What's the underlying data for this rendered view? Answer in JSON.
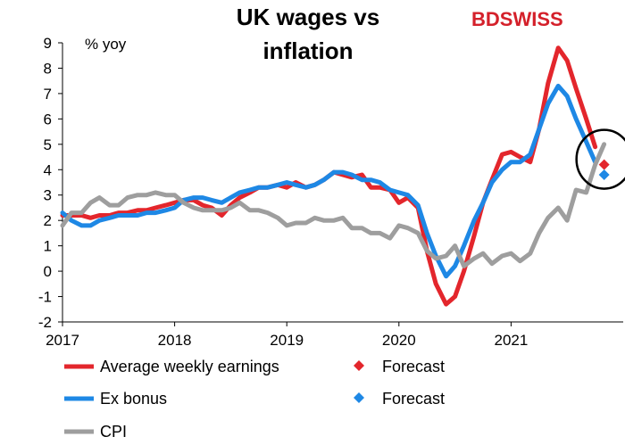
{
  "brand": {
    "text": "BDSWISS",
    "color": "#d4202a"
  },
  "chart_data": {
    "type": "line",
    "title": "UK wages vs inflation",
    "title_lines": [
      "UK wages vs",
      "inflation"
    ],
    "ylabel": "% yoy",
    "ylim": [
      -2,
      9
    ],
    "yticks": [
      -2,
      -1,
      0,
      1,
      2,
      3,
      4,
      5,
      6,
      7,
      8,
      9
    ],
    "xlim": [
      2017.0,
      2022.0
    ],
    "xticks": [
      2017,
      2018,
      2019,
      2020,
      2021
    ],
    "grid": false,
    "legend_position": "bottom",
    "series": [
      {
        "name": "Average weekly earnings",
        "color": "#e3262c",
        "points": [
          [
            2017.0,
            2.2
          ],
          [
            2017.08,
            2.2
          ],
          [
            2017.17,
            2.2
          ],
          [
            2017.25,
            2.1
          ],
          [
            2017.33,
            2.2
          ],
          [
            2017.42,
            2.2
          ],
          [
            2017.5,
            2.3
          ],
          [
            2017.58,
            2.3
          ],
          [
            2017.67,
            2.4
          ],
          [
            2017.75,
            2.4
          ],
          [
            2017.83,
            2.5
          ],
          [
            2017.92,
            2.6
          ],
          [
            2018.0,
            2.7
          ],
          [
            2018.08,
            2.8
          ],
          [
            2018.17,
            2.8
          ],
          [
            2018.25,
            2.6
          ],
          [
            2018.33,
            2.5
          ],
          [
            2018.42,
            2.2
          ],
          [
            2018.5,
            2.6
          ],
          [
            2018.58,
            2.9
          ],
          [
            2018.67,
            3.1
          ],
          [
            2018.75,
            3.3
          ],
          [
            2018.83,
            3.3
          ],
          [
            2018.92,
            3.4
          ],
          [
            2019.0,
            3.3
          ],
          [
            2019.08,
            3.5
          ],
          [
            2019.17,
            3.3
          ],
          [
            2019.25,
            3.4
          ],
          [
            2019.33,
            3.6
          ],
          [
            2019.42,
            3.9
          ],
          [
            2019.5,
            3.8
          ],
          [
            2019.58,
            3.7
          ],
          [
            2019.67,
            3.8
          ],
          [
            2019.75,
            3.3
          ],
          [
            2019.83,
            3.3
          ],
          [
            2019.92,
            3.2
          ],
          [
            2020.0,
            2.7
          ],
          [
            2020.08,
            2.9
          ],
          [
            2020.17,
            2.5
          ],
          [
            2020.25,
            0.8
          ],
          [
            2020.33,
            -0.5
          ],
          [
            2020.42,
            -1.3
          ],
          [
            2020.5,
            -1.0
          ],
          [
            2020.58,
            0.0
          ],
          [
            2020.67,
            1.4
          ],
          [
            2020.75,
            2.7
          ],
          [
            2020.83,
            3.6
          ],
          [
            2020.92,
            4.6
          ],
          [
            2021.0,
            4.7
          ],
          [
            2021.08,
            4.5
          ],
          [
            2021.17,
            4.3
          ],
          [
            2021.25,
            5.6
          ],
          [
            2021.33,
            7.4
          ],
          [
            2021.42,
            8.8
          ],
          [
            2021.5,
            8.3
          ],
          [
            2021.58,
            7.2
          ],
          [
            2021.67,
            6.0
          ],
          [
            2021.75,
            4.9
          ]
        ]
      },
      {
        "name": "Ex bonus",
        "color": "#1e88e5",
        "points": [
          [
            2017.0,
            2.3
          ],
          [
            2017.08,
            2.0
          ],
          [
            2017.17,
            1.8
          ],
          [
            2017.25,
            1.8
          ],
          [
            2017.33,
            2.0
          ],
          [
            2017.42,
            2.1
          ],
          [
            2017.5,
            2.2
          ],
          [
            2017.58,
            2.2
          ],
          [
            2017.67,
            2.2
          ],
          [
            2017.75,
            2.3
          ],
          [
            2017.83,
            2.3
          ],
          [
            2017.92,
            2.4
          ],
          [
            2018.0,
            2.5
          ],
          [
            2018.08,
            2.8
          ],
          [
            2018.17,
            2.9
          ],
          [
            2018.25,
            2.9
          ],
          [
            2018.33,
            2.8
          ],
          [
            2018.42,
            2.7
          ],
          [
            2018.5,
            2.9
          ],
          [
            2018.58,
            3.1
          ],
          [
            2018.67,
            3.2
          ],
          [
            2018.75,
            3.3
          ],
          [
            2018.83,
            3.3
          ],
          [
            2018.92,
            3.4
          ],
          [
            2019.0,
            3.5
          ],
          [
            2019.08,
            3.4
          ],
          [
            2019.17,
            3.3
          ],
          [
            2019.25,
            3.4
          ],
          [
            2019.33,
            3.6
          ],
          [
            2019.42,
            3.9
          ],
          [
            2019.5,
            3.9
          ],
          [
            2019.58,
            3.8
          ],
          [
            2019.67,
            3.6
          ],
          [
            2019.75,
            3.6
          ],
          [
            2019.83,
            3.5
          ],
          [
            2019.92,
            3.2
          ],
          [
            2020.0,
            3.1
          ],
          [
            2020.08,
            3.0
          ],
          [
            2020.17,
            2.6
          ],
          [
            2020.25,
            1.5
          ],
          [
            2020.33,
            0.6
          ],
          [
            2020.42,
            -0.2
          ],
          [
            2020.5,
            0.2
          ],
          [
            2020.58,
            1.0
          ],
          [
            2020.67,
            2.0
          ],
          [
            2020.75,
            2.7
          ],
          [
            2020.83,
            3.5
          ],
          [
            2020.92,
            4.0
          ],
          [
            2021.0,
            4.3
          ],
          [
            2021.08,
            4.3
          ],
          [
            2021.17,
            4.6
          ],
          [
            2021.25,
            5.6
          ],
          [
            2021.33,
            6.6
          ],
          [
            2021.42,
            7.3
          ],
          [
            2021.5,
            6.9
          ],
          [
            2021.58,
            6.0
          ],
          [
            2021.67,
            5.1
          ],
          [
            2021.75,
            4.3
          ]
        ]
      },
      {
        "name": "CPI",
        "color": "#9e9e9e",
        "points": [
          [
            2017.0,
            1.8
          ],
          [
            2017.08,
            2.3
          ],
          [
            2017.17,
            2.3
          ],
          [
            2017.25,
            2.7
          ],
          [
            2017.33,
            2.9
          ],
          [
            2017.42,
            2.6
          ],
          [
            2017.5,
            2.6
          ],
          [
            2017.58,
            2.9
          ],
          [
            2017.67,
            3.0
          ],
          [
            2017.75,
            3.0
          ],
          [
            2017.83,
            3.1
          ],
          [
            2017.92,
            3.0
          ],
          [
            2018.0,
            3.0
          ],
          [
            2018.08,
            2.7
          ],
          [
            2018.17,
            2.5
          ],
          [
            2018.25,
            2.4
          ],
          [
            2018.33,
            2.4
          ],
          [
            2018.42,
            2.4
          ],
          [
            2018.5,
            2.5
          ],
          [
            2018.58,
            2.7
          ],
          [
            2018.67,
            2.4
          ],
          [
            2018.75,
            2.4
          ],
          [
            2018.83,
            2.3
          ],
          [
            2018.92,
            2.1
          ],
          [
            2019.0,
            1.8
          ],
          [
            2019.08,
            1.9
          ],
          [
            2019.17,
            1.9
          ],
          [
            2019.25,
            2.1
          ],
          [
            2019.33,
            2.0
          ],
          [
            2019.42,
            2.0
          ],
          [
            2019.5,
            2.1
          ],
          [
            2019.58,
            1.7
          ],
          [
            2019.67,
            1.7
          ],
          [
            2019.75,
            1.5
          ],
          [
            2019.83,
            1.5
          ],
          [
            2019.92,
            1.3
          ],
          [
            2020.0,
            1.8
          ],
          [
            2020.08,
            1.7
          ],
          [
            2020.17,
            1.5
          ],
          [
            2020.25,
            0.8
          ],
          [
            2020.33,
            0.5
          ],
          [
            2020.42,
            0.6
          ],
          [
            2020.5,
            1.0
          ],
          [
            2020.58,
            0.2
          ],
          [
            2020.67,
            0.5
          ],
          [
            2020.75,
            0.7
          ],
          [
            2020.83,
            0.3
          ],
          [
            2020.92,
            0.6
          ],
          [
            2021.0,
            0.7
          ],
          [
            2021.08,
            0.4
          ],
          [
            2021.17,
            0.7
          ],
          [
            2021.25,
            1.5
          ],
          [
            2021.33,
            2.1
          ],
          [
            2021.42,
            2.5
          ],
          [
            2021.5,
            2.0
          ],
          [
            2021.58,
            3.2
          ],
          [
            2021.67,
            3.1
          ],
          [
            2021.75,
            4.2
          ],
          [
            2021.83,
            5.0
          ]
        ]
      }
    ],
    "forecasts": [
      {
        "label": "Forecast",
        "series": "Average weekly earnings",
        "x": 2021.83,
        "y": 4.2,
        "color": "#e3262c"
      },
      {
        "label": "Forecast",
        "series": "Ex bonus",
        "x": 2021.83,
        "y": 3.8,
        "color": "#1e88e5"
      }
    ],
    "highlight_circle": {
      "x": 2021.83,
      "y": 4.2
    }
  }
}
